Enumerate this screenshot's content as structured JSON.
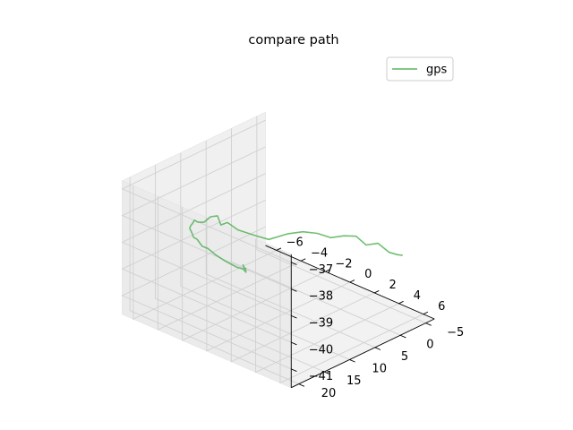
{
  "chart_data": {
    "type": "line",
    "projection": "3d",
    "title": "compare path",
    "xlabel": "",
    "ylabel": "",
    "zlabel": "",
    "x_ticks": [
      -6,
      -4,
      -2,
      0,
      2,
      4,
      6
    ],
    "x_tick_labels": [
      "−6",
      "−4",
      "−2",
      "0",
      "2",
      "4",
      "6"
    ],
    "y_ticks": [
      -5,
      0,
      5,
      10,
      15,
      20
    ],
    "y_tick_labels": [
      "−5",
      "0",
      "5",
      "10",
      "15",
      "20"
    ],
    "z_ticks": [
      -41,
      -40,
      -39,
      -38,
      -37
    ],
    "z_tick_labels": [
      "−41",
      "−40",
      "−39",
      "−38",
      "−37"
    ],
    "grid": true,
    "legend_position": "top-right",
    "series": [
      {
        "name": "gps",
        "color": "#4caf50",
        "x": [
          5.62,
          5.46,
          4.95,
          4.35,
          3.99,
          3.47,
          3.1,
          2.6,
          2.1,
          1.38,
          0.36,
          -0.49,
          -1.56,
          -2.83,
          -3.8,
          -4.48,
          -4.78,
          -4.87,
          -4.85,
          -4.63,
          -4.37,
          -3.98,
          -3.5,
          -3.0,
          -2.48,
          -2.0,
          -1.55,
          -1.02,
          -0.6,
          -0.05,
          0.43,
          0.66,
          0.6,
          0.39,
          -0.24,
          -0.71,
          -1.39
        ],
        "y": [
          -3.45,
          -2.89,
          -2.52,
          -1.74,
          -0.27,
          0.44,
          1.95,
          3.38,
          4.78,
          5.89,
          6.5,
          8.1,
          8.39,
          8.53,
          8.27,
          7.92,
          7.87,
          9.03,
          10.37,
          12.08,
          13.39,
          14.76,
          16.23,
          17.63,
          18.44,
          19.27,
          19.65,
          19.94,
          19.84,
          19.57,
          18.9,
          17.26,
          15.8,
          14.7,
          13.31,
          12.34,
          11.02
        ],
        "z": [
          -39.27,
          -39.23,
          -39.21,
          -38.92,
          -38.92,
          -38.63,
          -38.55,
          -38.59,
          -38.4,
          -38.38,
          -38.61,
          -38.84,
          -38.87,
          -38.91,
          -38.85,
          -39.11,
          -38.83,
          -38.78,
          -38.86,
          -38.66,
          -38.41,
          -38.34,
          -38.18,
          -38.05,
          -38.05,
          -38.04,
          -37.99,
          -38.12,
          -38.13,
          -38.29,
          -38.48,
          -38.81,
          -39.03,
          -39.29,
          -39.39,
          -39.59,
          -39.71
        ]
      }
    ]
  }
}
